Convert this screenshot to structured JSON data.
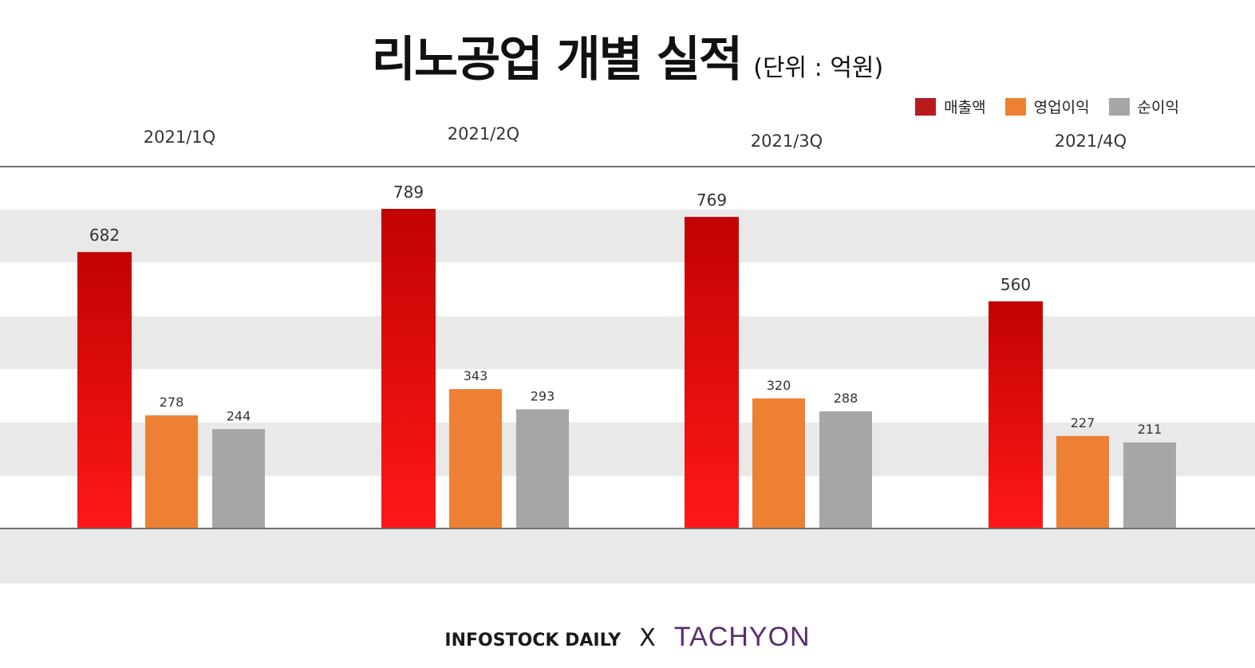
{
  "title": "리노공업 개별 실적",
  "unit": "(단위 : 억원)",
  "legend": [
    {
      "label": "매출액",
      "color": "#b91c1c"
    },
    {
      "label": "영업이익",
      "color": "#ee8033"
    },
    {
      "label": "순이익",
      "color": "#a6a6a6"
    }
  ],
  "footer": {
    "left": "INFOSTOCK DAILY",
    "separator": "X",
    "right": "TACHYON"
  },
  "chart_data": {
    "type": "bar",
    "title": "리노공업 개별 실적",
    "subtitle": "(단위 : 억원)",
    "categories": [
      "2021/1Q",
      "2021/2Q",
      "2021/3Q",
      "2021/4Q"
    ],
    "series": [
      {
        "name": "매출액",
        "values": [
          682,
          789,
          769,
          560
        ],
        "color": "#d41414"
      },
      {
        "name": "영업이익",
        "values": [
          278,
          343,
          320,
          227
        ],
        "color": "#ee8033"
      },
      {
        "name": "순이익",
        "values": [
          244,
          293,
          288,
          211
        ],
        "color": "#a6a6a6"
      }
    ],
    "ylim": [
      0,
      789
    ],
    "legend_position": "top-right",
    "grid": false
  }
}
